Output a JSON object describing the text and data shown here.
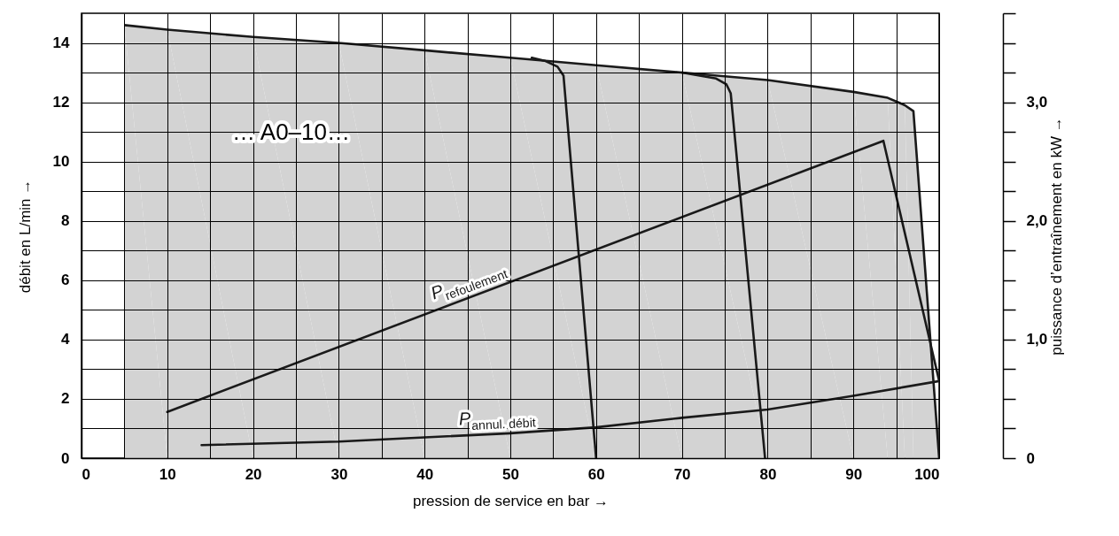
{
  "chart_data": {
    "type": "line",
    "xlabel": "pression de service en bar →",
    "ylabel": "débit en L/min →",
    "y2label": "puissance d’entraînement en kW →",
    "annotations": [
      "… A0–10…"
    ],
    "xlim": [
      0,
      100
    ],
    "xticks": [
      0,
      {
        "value": 5,
        "label": null
      },
      10,
      {
        "value": 15,
        "label": null
      },
      20,
      {
        "value": 25,
        "label": null
      },
      30,
      {
        "value": 35,
        "label": null
      },
      40,
      {
        "value": 45,
        "label": null
      },
      50,
      {
        "value": 55,
        "label": null
      },
      60,
      {
        "value": 65,
        "label": null
      },
      70,
      {
        "value": 75,
        "label": null
      },
      80,
      {
        "value": 85,
        "label": null
      },
      90,
      {
        "value": 95,
        "label": null
      },
      100
    ],
    "ylim": [
      0,
      15
    ],
    "yticks": [
      0,
      {
        "value": 1,
        "label": null
      },
      2,
      {
        "value": 3,
        "label": null
      },
      4,
      {
        "value": 5,
        "label": null
      },
      6,
      {
        "value": 7,
        "label": null
      },
      8,
      {
        "value": 9,
        "label": null
      },
      10,
      {
        "value": 11,
        "label": null
      },
      12,
      {
        "value": 13,
        "label": null
      },
      14
    ],
    "y2lim": [
      0,
      3.75
    ],
    "y2ticks": [
      {
        "value": 0,
        "label": "0"
      },
      {
        "value": 0.25,
        "label": null
      },
      {
        "value": 0.5,
        "label": null
      },
      {
        "value": 0.75,
        "label": null
      },
      {
        "value": 1,
        "label": "1,0"
      },
      {
        "value": 1.25,
        "label": null
      },
      {
        "value": 1.5,
        "label": null
      },
      {
        "value": 1.75,
        "label": null
      },
      {
        "value": 2,
        "label": "2,0"
      },
      {
        "value": 2.25,
        "label": null
      },
      {
        "value": 2.5,
        "label": null
      },
      {
        "value": 2.75,
        "label": null
      },
      {
        "value": 3,
        "label": "3,0"
      },
      {
        "value": 3.25,
        "label": null
      },
      {
        "value": 3.5,
        "label": null
      },
      {
        "value": 3.75,
        "label": null
      }
    ],
    "grid": true,
    "series": [
      {
        "type": "area",
        "color": "#d3d3d3",
        "x": [
          5,
          10,
          20,
          30,
          40,
          50,
          60,
          70,
          80,
          90,
          94,
          96,
          97,
          100
        ],
        "values": [
          14.6,
          14.45,
          14.2,
          14.0,
          13.75,
          13.5,
          13.25,
          13.0,
          12.75,
          12.35,
          12.15,
          11.9,
          11.7,
          0
        ]
      },
      {
        "type": "line",
        "color": "#1a1a1a",
        "x": [
          52.5,
          54,
          55.5,
          56.2,
          60
        ],
        "values": [
          13.5,
          13.4,
          13.2,
          12.9,
          0
        ]
      },
      {
        "type": "line",
        "color": "#1a1a1a",
        "x": [
          70,
          74,
          75.2,
          75.7,
          79.7
        ],
        "values": [
          13.0,
          12.8,
          12.6,
          12.3,
          0
        ]
      },
      {
        "name": "P$_{refoulement}$",
        "type": "line",
        "axis": "y2",
        "color": "#1a1a1a",
        "x": [
          10,
          93.5,
          100
        ],
        "values": [
          0.39,
          2.675,
          0.65
        ]
      },
      {
        "name": "P$_{annul. débit}$",
        "type": "line",
        "axis": "y2",
        "color": "#1a1a1a",
        "x": [
          14,
          30,
          40,
          50,
          60,
          70,
          80,
          90,
          100
        ],
        "values": [
          0.11,
          0.14,
          0.175,
          0.21,
          0.26,
          0.34,
          0.41,
          0.525,
          0.65
        ]
      }
    ]
  }
}
